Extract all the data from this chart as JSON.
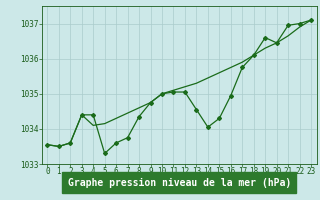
{
  "title": "Graphe pression niveau de la mer (hPa)",
  "x_values": [
    0,
    1,
    2,
    3,
    4,
    5,
    6,
    7,
    8,
    9,
    10,
    11,
    12,
    13,
    14,
    15,
    16,
    17,
    18,
    19,
    20,
    21,
    22,
    23
  ],
  "y_main": [
    1033.55,
    1033.5,
    1033.6,
    1034.4,
    1034.4,
    1033.3,
    1033.6,
    1033.75,
    1034.35,
    1034.75,
    1035.0,
    1035.05,
    1035.05,
    1034.55,
    1034.05,
    1034.3,
    1034.95,
    1035.75,
    1036.1,
    1036.6,
    1036.45,
    1036.95,
    1037.0,
    1037.1
  ],
  "y_smooth": [
    1033.55,
    1033.5,
    1033.6,
    1034.4,
    1034.1,
    1034.15,
    1034.3,
    1034.45,
    1034.6,
    1034.75,
    1035.0,
    1035.1,
    1035.2,
    1035.3,
    1035.45,
    1035.6,
    1035.75,
    1035.9,
    1036.1,
    1036.3,
    1036.45,
    1036.65,
    1036.9,
    1037.1
  ],
  "line_color": "#1a6b1a",
  "bg_color": "#cce8e8",
  "grid_color": "#aacccc",
  "text_color": "#1a5c1a",
  "label_bg": "#2d7a2d",
  "ylim": [
    1033.0,
    1037.5
  ],
  "yticks": [
    1033,
    1034,
    1035,
    1036,
    1037
  ],
  "xlim": [
    -0.5,
    23.5
  ],
  "title_fontsize": 7.0,
  "tick_fontsize": 5.5
}
